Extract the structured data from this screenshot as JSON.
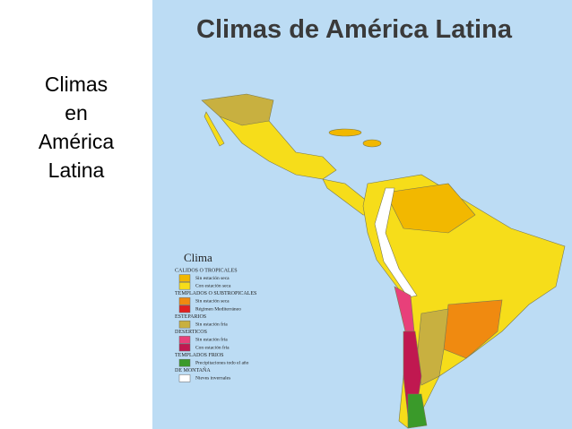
{
  "slide": {
    "title_lines": [
      "Climas",
      "en",
      "América",
      "Latina"
    ]
  },
  "map": {
    "title": "Climas de América Latina",
    "legend": {
      "title": "Clima",
      "groups": [
        {
          "name": "CALIDOS O TROPICALES",
          "items": [
            {
              "label": "Sin estación seca",
              "color": "#f2b800"
            },
            {
              "label": "Con estación seca",
              "color": "#f6dd1a"
            }
          ]
        },
        {
          "name": "TEMPLADOS O SUBTROPICALES",
          "items": [
            {
              "label": "Sin estación seca",
              "color": "#f08a10"
            },
            {
              "label": "Régimen Mediterráneo",
              "color": "#e22020"
            }
          ]
        },
        {
          "name": "ESTEPARIOS",
          "items": [
            {
              "label": "Sin estación fría",
              "color": "#c8b040"
            }
          ]
        },
        {
          "name": "DESERTICOS",
          "items": [
            {
              "label": "Sin estación fría",
              "color": "#e8407a"
            },
            {
              "label": "Con estación fría",
              "color": "#c01850"
            }
          ]
        },
        {
          "name": "TEMPLADOS FRIOS",
          "items": [
            {
              "label": "Precipitaciones todo el año",
              "color": "#3a9a2a"
            }
          ]
        },
        {
          "name": "DE MONTAÑA",
          "items": [
            {
              "label": "Nieves invernales",
              "color": "#ffffff"
            }
          ]
        }
      ]
    }
  }
}
